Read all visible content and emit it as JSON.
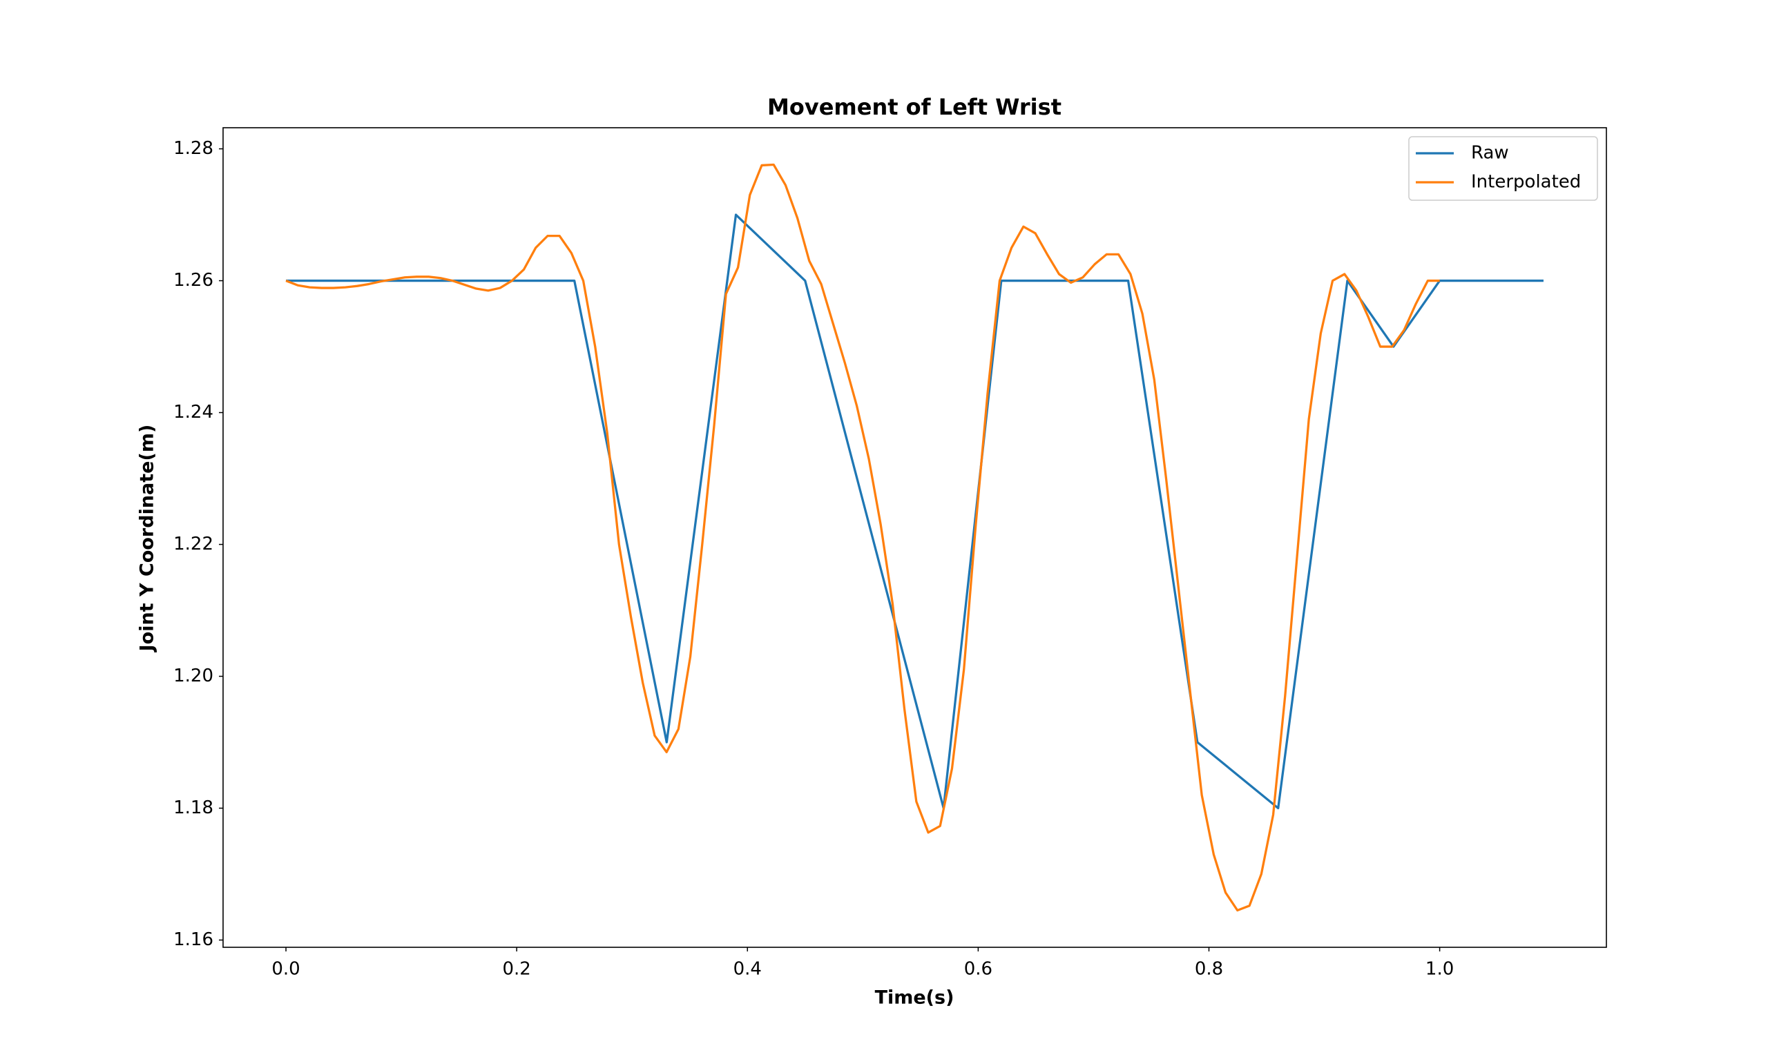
{
  "chart_data": {
    "type": "line",
    "title": "Movement of Left Wrist",
    "xlabel": "Time(s)",
    "ylabel": "Joint Y Coordinate(m)",
    "series": [
      {
        "name": "Raw",
        "color": "#1f77b4",
        "x": [
          0,
          0.25,
          0.33,
          0.39,
          0.45,
          0.57,
          0.62,
          0.73,
          0.79,
          0.86,
          0.92,
          0.96,
          1.0,
          1.09
        ],
        "values": [
          1.26,
          1.26,
          1.19,
          1.27,
          1.26,
          1.18,
          1.26,
          1.26,
          1.19,
          1.18,
          1.26,
          1.25,
          1.26,
          1.26
        ]
      },
      {
        "name": "Interpolated",
        "color": "#ff7f0e",
        "x": [
          0,
          0.0103,
          0.0206,
          0.0309,
          0.0412,
          0.0515,
          0.0619,
          0.0722,
          0.0825,
          0.0928,
          0.1031,
          0.1134,
          0.1237,
          0.134,
          0.1443,
          0.1546,
          0.1649,
          0.1753,
          0.1856,
          0.1959,
          0.2062,
          0.2165,
          0.2268,
          0.2371,
          0.2474,
          0.2577,
          0.268,
          0.2784,
          0.2887,
          0.299,
          0.3093,
          0.3196,
          0.3299,
          0.3402,
          0.3505,
          0.3608,
          0.3711,
          0.3814,
          0.3918,
          0.4021,
          0.4124,
          0.4227,
          0.433,
          0.4433,
          0.4536,
          0.4639,
          0.4742,
          0.4845,
          0.4948,
          0.5052,
          0.5155,
          0.5258,
          0.5361,
          0.5464,
          0.5567,
          0.567,
          0.5773,
          0.5876,
          0.5979,
          0.6082,
          0.6186,
          0.6289,
          0.6392,
          0.6495,
          0.6598,
          0.6701,
          0.6804,
          0.6907,
          0.701,
          0.7113,
          0.7216,
          0.732,
          0.7423,
          0.7526,
          0.7629,
          0.7732,
          0.7835,
          0.7938,
          0.8041,
          0.8144,
          0.8247,
          0.8351,
          0.8454,
          0.8557,
          0.866,
          0.8763,
          0.8866,
          0.8969,
          0.9072,
          0.9175,
          0.9278,
          0.9381,
          0.9485,
          0.9588,
          0.9691,
          0.9794,
          0.9897,
          1.0
        ],
        "values": [
          1.26,
          1.2593,
          1.259,
          1.2589,
          1.2589,
          1.259,
          1.2592,
          1.2595,
          1.2599,
          1.2602,
          1.2605,
          1.2606,
          1.2606,
          1.2604,
          1.26,
          1.2594,
          1.2588,
          1.2585,
          1.2589,
          1.26,
          1.2617,
          1.265,
          1.2668,
          1.2668,
          1.2642,
          1.26,
          1.25,
          1.237,
          1.22,
          1.209,
          1.199,
          1.191,
          1.1885,
          1.192,
          1.203,
          1.22,
          1.238,
          1.258,
          1.262,
          1.273,
          1.2775,
          1.2776,
          1.2745,
          1.2695,
          1.263,
          1.2595,
          1.2535,
          1.2475,
          1.241,
          1.233,
          1.223,
          1.211,
          1.195,
          1.181,
          1.1763,
          1.1773,
          1.186,
          1.201,
          1.223,
          1.243,
          1.26,
          1.265,
          1.2682,
          1.2672,
          1.264,
          1.261,
          1.2597,
          1.2605,
          1.2625,
          1.264,
          1.264,
          1.261,
          1.255,
          1.245,
          1.23,
          1.214,
          1.198,
          1.182,
          1.173,
          1.1672,
          1.1645,
          1.1652,
          1.17,
          1.179,
          1.197,
          1.218,
          1.239,
          1.252,
          1.26,
          1.261,
          1.2585,
          1.2545,
          1.25,
          1.25,
          1.2525,
          1.2565,
          1.26,
          1.26
        ]
      }
    ],
    "xlim": [
      -0.0545,
      1.1445
    ],
    "ylim": [
      1.1589,
      1.2832
    ],
    "xticks": [
      {
        "value": 0,
        "label": "0.0"
      },
      0.2,
      0.4,
      0.6,
      0.8,
      {
        "value": 1,
        "label": "1.0"
      }
    ],
    "yticks": [
      1.16,
      1.18,
      {
        "value": 1.2,
        "label": "1.20"
      },
      1.22,
      1.24,
      1.26,
      1.28
    ],
    "legend": "upper right",
    "grid": false
  }
}
